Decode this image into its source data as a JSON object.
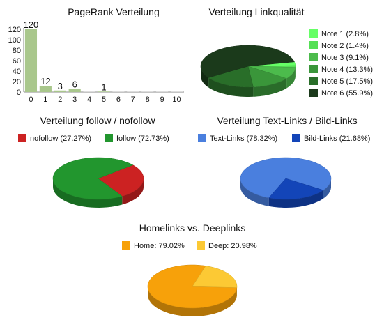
{
  "chart_data": [
    {
      "id": "pagerank",
      "type": "bar",
      "title": "PageRank Verteilung",
      "categories": [
        "0",
        "1",
        "2",
        "3",
        "4",
        "5",
        "6",
        "7",
        "8",
        "9",
        "10"
      ],
      "values": [
        120,
        12,
        3,
        6,
        0,
        1,
        0,
        0,
        0,
        0,
        0
      ],
      "data_labels": [
        "120",
        "12",
        "3",
        "6",
        "",
        "1",
        "",
        "",
        "",
        "",
        ""
      ],
      "ylim": [
        0,
        120
      ],
      "yticks": [
        "0",
        "20",
        "40",
        "60",
        "80",
        "100",
        "120"
      ],
      "grid": false,
      "color": "#a9c78c"
    },
    {
      "id": "linkqualitaet",
      "type": "pie",
      "title": "Verteilung Linkqualität",
      "legend_position": "right",
      "slices": [
        {
          "label": "Note 1 (2.8%)",
          "value": 2.8,
          "color": "#66ff66"
        },
        {
          "label": "Note 2 (1.4%)",
          "value": 1.4,
          "color": "#55e055"
        },
        {
          "label": "Note 3 (9.1%)",
          "value": 9.1,
          "color": "#4cbb4c"
        },
        {
          "label": "Note 4 (13.3%)",
          "value": 13.3,
          "color": "#3a963a"
        },
        {
          "label": "Note 5 (17.5%)",
          "value": 17.5,
          "color": "#296e29"
        },
        {
          "label": "Note 6 (55.9%)",
          "value": 55.9,
          "color": "#1b3a1b"
        }
      ]
    },
    {
      "id": "follow",
      "type": "pie",
      "title": "Verteilung follow / nofollow",
      "legend_position": "top",
      "slices": [
        {
          "label": "nofollow (27.27%)",
          "value": 27.27,
          "color": "#cc2222"
        },
        {
          "label": "follow (72.73%)",
          "value": 72.73,
          "color": "#22962e"
        }
      ]
    },
    {
      "id": "textbild",
      "type": "pie",
      "title": "Verteilung Text-Links / Bild-Links",
      "legend_position": "top",
      "slices": [
        {
          "label": "Text-Links (78.32%)",
          "value": 78.32,
          "color": "#4a7fde"
        },
        {
          "label": "Bild-Links (21.68%)",
          "value": 21.68,
          "color": "#1345b8"
        }
      ]
    },
    {
      "id": "homedeep",
      "type": "pie",
      "title": "Homelinks vs. Deeplinks",
      "legend_position": "top",
      "slices": [
        {
          "label": "Home: 79.02%",
          "value": 79.02,
          "color": "#f7a10a"
        },
        {
          "label": "Deep: 20.98%",
          "value": 20.98,
          "color": "#fcc934"
        }
      ]
    }
  ]
}
